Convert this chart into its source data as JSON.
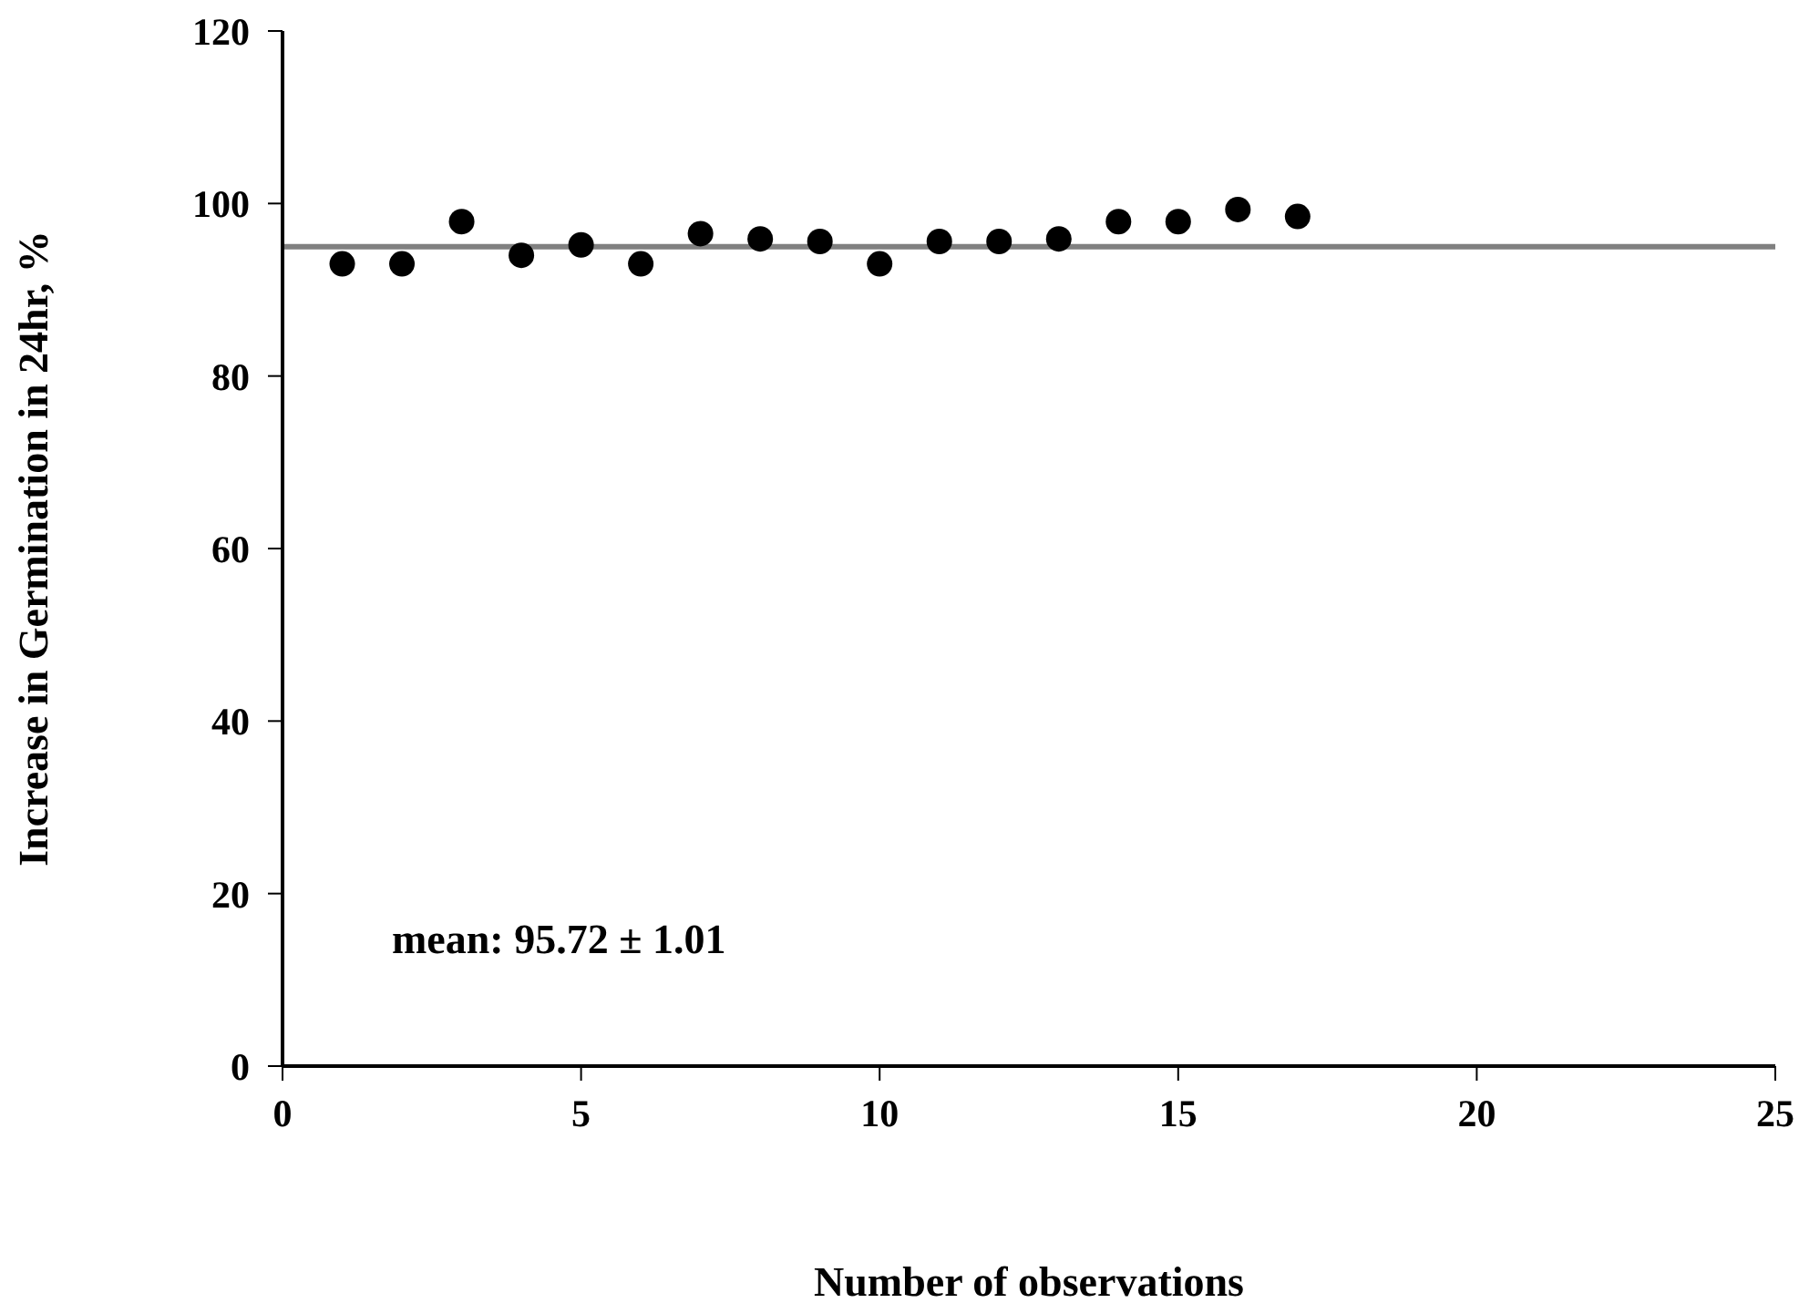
{
  "chart_data": {
    "type": "scatter",
    "xlabel": "Number of observations",
    "ylabel": "Increase in Germination in 24hr, %",
    "x": [
      1,
      2,
      3,
      4,
      5,
      6,
      7,
      8,
      9,
      10,
      11,
      12,
      13,
      14,
      15,
      16,
      17
    ],
    "values": [
      93.0,
      93.0,
      97.9,
      94.0,
      95.2,
      93.0,
      96.5,
      95.9,
      95.6,
      93.0,
      95.6,
      95.6,
      95.9,
      97.9,
      97.9,
      99.3,
      98.5
    ],
    "color": "#000000",
    "marker": "circle",
    "xlim": [
      0,
      25
    ],
    "xticks": [
      0,
      5,
      10,
      15,
      20,
      25
    ],
    "ylim": [
      0,
      120
    ],
    "yticks": [
      0,
      20,
      40,
      60,
      80,
      100,
      120
    ],
    "ref_lines": [
      {
        "axis": "y",
        "value": 95,
        "color": "#808080",
        "line_style": "solid"
      }
    ],
    "annotations": [
      "mean: 95.72 ± 1.01"
    ],
    "grid": false,
    "legend": false
  }
}
